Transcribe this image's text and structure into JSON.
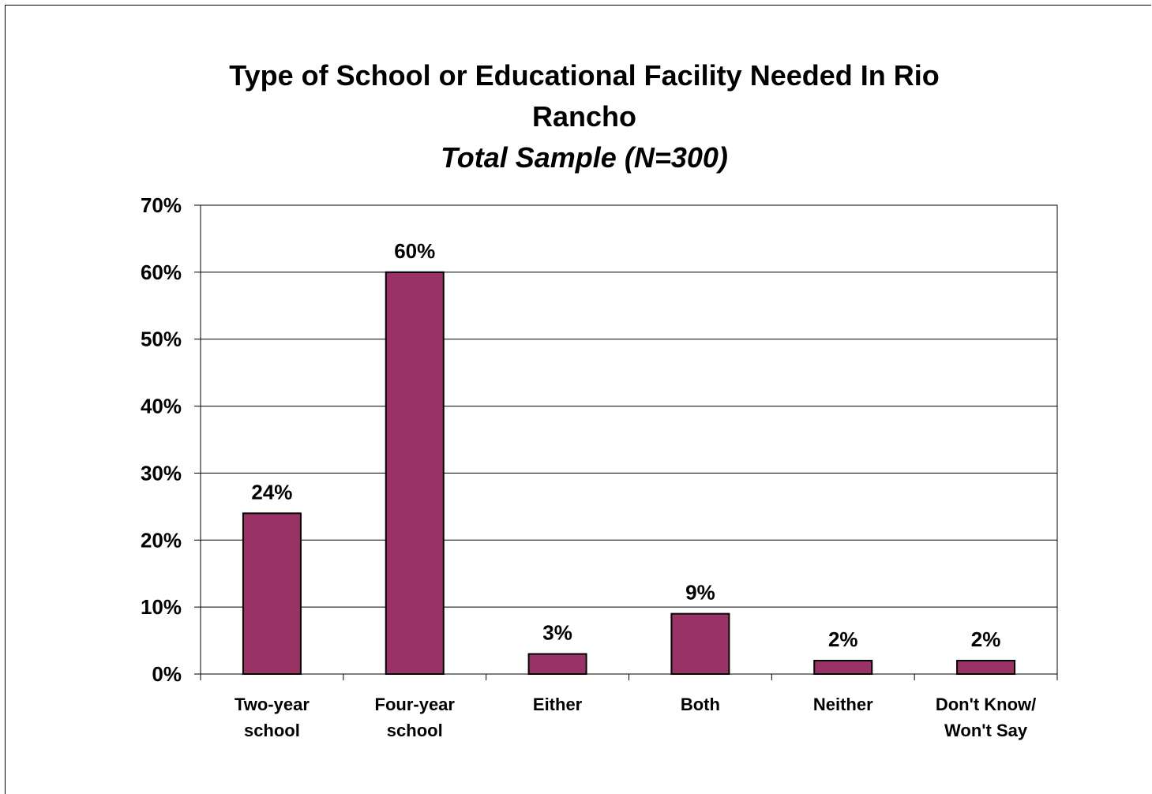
{
  "chart_data": {
    "type": "bar",
    "title_line1": "Type of School or Educational Facility Needed In Rio",
    "title_line2": "Rancho",
    "subtitle": "Total Sample (N=300)",
    "categories": [
      [
        "Two-year",
        "school"
      ],
      [
        "Four-year",
        "school"
      ],
      [
        "Either"
      ],
      [
        "Both"
      ],
      [
        "Neither"
      ],
      [
        "Don't Know/",
        "Won't Say"
      ]
    ],
    "values": [
      24,
      60,
      3,
      9,
      2,
      2
    ],
    "value_labels": [
      "24%",
      "60%",
      "3%",
      "9%",
      "2%",
      "2%"
    ],
    "y_ticks": [
      "0%",
      "10%",
      "20%",
      "30%",
      "40%",
      "50%",
      "60%",
      "70%"
    ],
    "ylim": [
      0,
      70
    ],
    "grid": true,
    "bar_color": "#993366",
    "legend": "none"
  }
}
